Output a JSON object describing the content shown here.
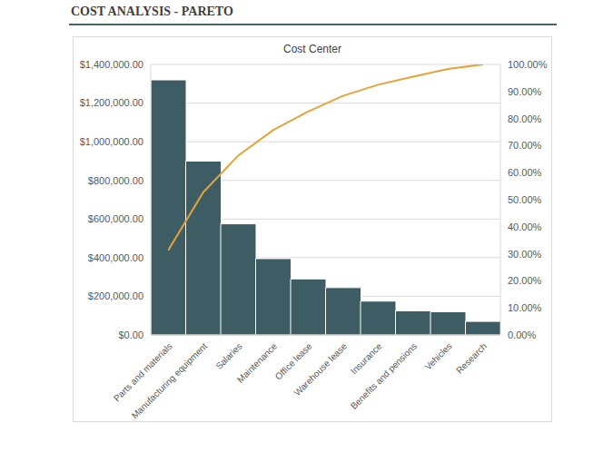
{
  "header": {
    "title": "COST ANALYSIS - PARETO"
  },
  "chart_data": {
    "type": "bar",
    "title": "Cost Center",
    "categories": [
      "Parts and materials",
      "Manufacturing equipment",
      "Salaries",
      "Maintenance",
      "Office lease",
      "Warehouse lease",
      "Insurance",
      "Benefits and pensions",
      "Vehicles",
      "Research"
    ],
    "series": [
      {
        "type": "bar",
        "color": "#3e5c63",
        "values": [
          1320000,
          900000,
          575000,
          395000,
          290000,
          245000,
          175000,
          125000,
          120000,
          70000
        ]
      },
      {
        "type": "line",
        "axis": "y2",
        "color": "#e3a33a",
        "values": [
          31.3,
          52.7,
          66.3,
          75.7,
          82.6,
          88.4,
          92.5,
          95.5,
          98.3,
          100
        ]
      }
    ],
    "ylim": [
      0,
      1400000
    ],
    "yticks": [
      {
        "value": 0,
        "label": "$0.00"
      },
      {
        "value": 200000,
        "label": "$200,000.00"
      },
      {
        "value": 400000,
        "label": "$400,000.00"
      },
      {
        "value": 600000,
        "label": "$600,000.00"
      },
      {
        "value": 800000,
        "label": "$800,000.00"
      },
      {
        "value": 1000000,
        "label": "$1,000,000.00"
      },
      {
        "value": 1200000,
        "label": "$1,200,000.00"
      },
      {
        "value": 1400000,
        "label": "$1,400,000.00"
      }
    ],
    "y2lim": [
      0,
      100
    ],
    "y2ticks": [
      {
        "value": 0,
        "label": "0.00%"
      },
      {
        "value": 10,
        "label": "10.00%"
      },
      {
        "value": 20,
        "label": "20.00%"
      },
      {
        "value": 30,
        "label": "30.00%"
      },
      {
        "value": 40,
        "label": "40.00%"
      },
      {
        "value": 50,
        "label": "50.00%"
      },
      {
        "value": 60,
        "label": "60.00%"
      },
      {
        "value": 70,
        "label": "70.00%"
      },
      {
        "value": 80,
        "label": "80.00%"
      },
      {
        "value": 90,
        "label": "90.00%"
      },
      {
        "value": 100,
        "label": "100.00%"
      }
    ],
    "grid": true
  }
}
